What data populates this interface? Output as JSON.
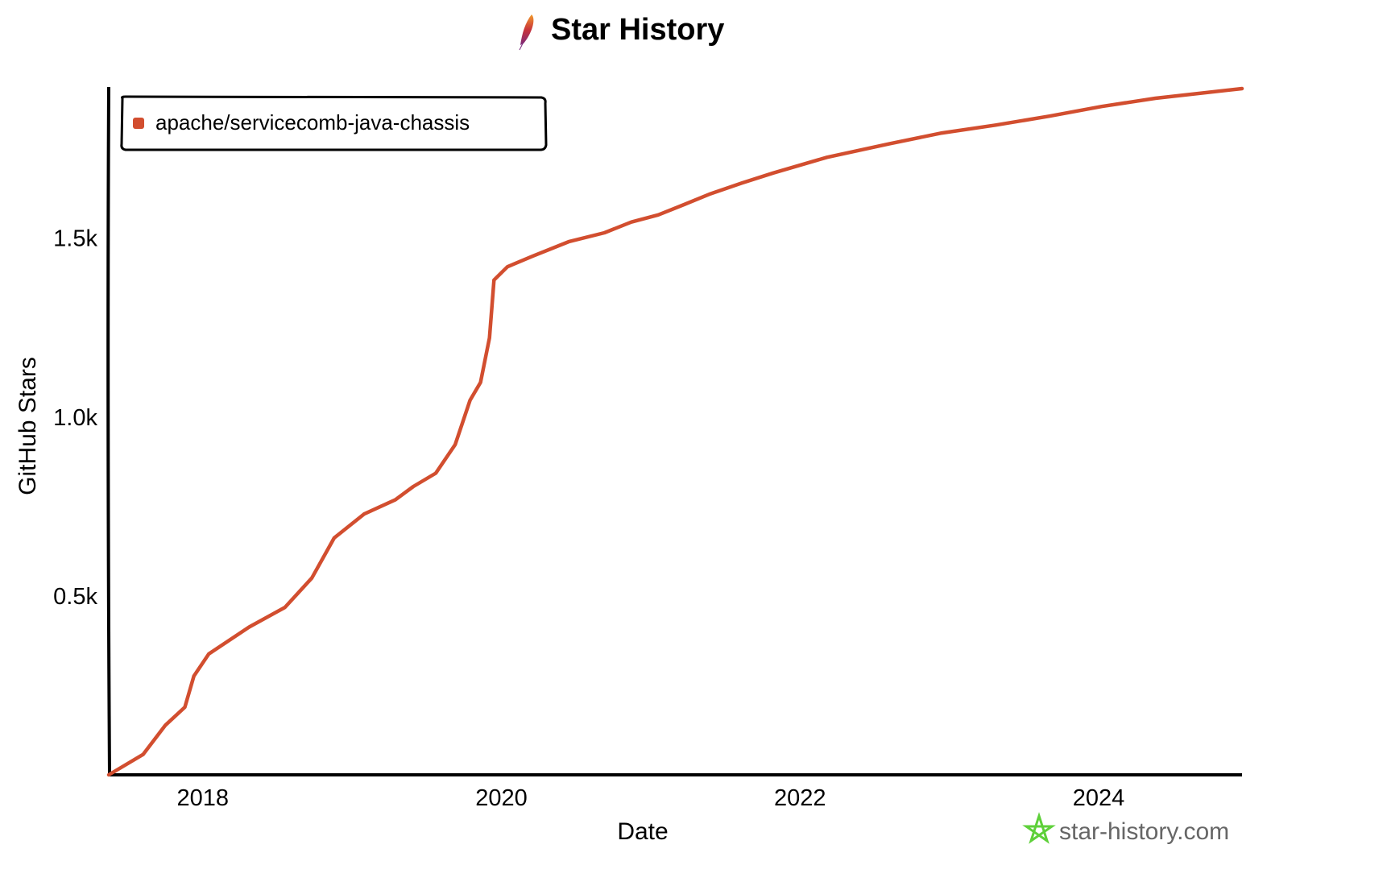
{
  "chart_data": {
    "type": "line",
    "title": "Star History",
    "xlabel": "Date",
    "ylabel": "GitHub Stars",
    "xlim": [
      2017.37,
      2024.96
    ],
    "ylim": [
      0,
      1918
    ],
    "x_ticks": [
      {
        "value": 2018,
        "label": "2018"
      },
      {
        "value": 2020,
        "label": "2020"
      },
      {
        "value": 2022,
        "label": "2022"
      },
      {
        "value": 2024,
        "label": "2024"
      }
    ],
    "y_ticks": [
      {
        "value": 500,
        "label": "0.5k"
      },
      {
        "value": 1000,
        "label": "1.0k"
      },
      {
        "value": 1500,
        "label": "1.5k"
      }
    ],
    "grid": false,
    "legend_placement": "top-left",
    "series": [
      {
        "name": "apache/servicecomb-java-chassis",
        "color": "#d24e2f",
        "x": [
          2017.37,
          2017.6,
          2017.75,
          2017.88,
          2017.94,
          2018.04,
          2018.31,
          2018.55,
          2018.73,
          2018.88,
          2019.08,
          2019.29,
          2019.41,
          2019.56,
          2019.69,
          2019.79,
          2019.86,
          2019.92,
          2019.95,
          2020.04,
          2020.21,
          2020.45,
          2020.69,
          2020.87,
          2021.05,
          2021.23,
          2021.4,
          2021.61,
          2021.82,
          2022.18,
          2022.6,
          2022.95,
          2023.31,
          2023.67,
          2024.02,
          2024.38,
          2024.96
        ],
        "y": [
          0,
          57,
          139,
          189,
          276,
          338,
          413,
          468,
          550,
          662,
          729,
          769,
          806,
          843,
          923,
          1047,
          1097,
          1221,
          1383,
          1420,
          1450,
          1490,
          1515,
          1545,
          1565,
          1595,
          1624,
          1654,
          1682,
          1726,
          1764,
          1794,
          1816,
          1841,
          1868,
          1891,
          1918
        ]
      }
    ],
    "watermark": "star-history.com"
  }
}
